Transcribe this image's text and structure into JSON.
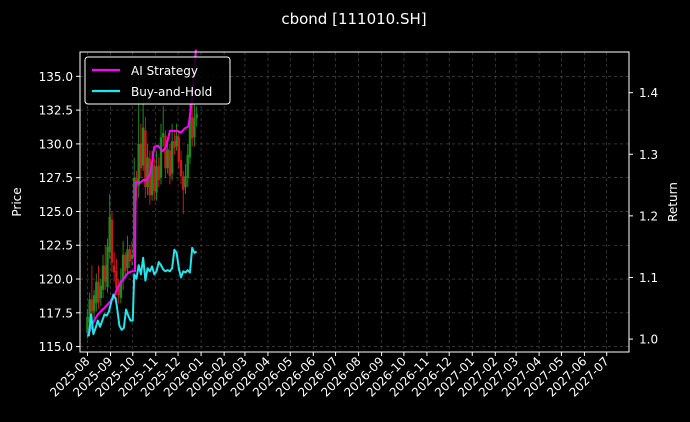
{
  "chart_data": {
    "type": "line",
    "title": "cbond [111010.SH]",
    "ylabel_left": "Price",
    "ylabel_right": "Return",
    "ylim_left": [
      114.6,
      136.8
    ],
    "ylim_right": [
      0.979,
      1.466
    ],
    "yticks_left": [
      "115.0",
      "117.5",
      "120.0",
      "122.5",
      "125.0",
      "127.5",
      "130.0",
      "132.5",
      "135.0"
    ],
    "yticks_right": [
      "1.0",
      "1.1",
      "1.2",
      "1.3",
      "1.4"
    ],
    "xticks": [
      "2025-08",
      "2025-09",
      "2025-10",
      "2025-11",
      "2025-12",
      "2026-01",
      "2026-02",
      "2026-03",
      "2026-04",
      "2026-05",
      "2026-06",
      "2026-07",
      "2026-08",
      "2026-09",
      "2026-10",
      "2026-11",
      "2026-12",
      "2027-01",
      "2027-02",
      "2027-03",
      "2027-04",
      "2027-05",
      "2027-06",
      "2027-07"
    ],
    "grid": true,
    "legend_position": "top-left",
    "colors": {
      "up": "#1f8a1f",
      "down": "#cc1a1a",
      "ai": "#ff00ff",
      "bh": "#22e5ee",
      "grid": "#555555"
    },
    "series": [
      {
        "name": "AI Strategy",
        "axis": "right",
        "color": "#ff00ff",
        "x": [
          "2025-08-01",
          "2025-08-05",
          "2025-08-10",
          "2025-08-15",
          "2025-08-20",
          "2025-08-25",
          "2025-08-31",
          "2025-09-05",
          "2025-09-10",
          "2025-09-15",
          "2025-09-20",
          "2025-09-25",
          "2025-09-30",
          "2025-10-04",
          "2025-10-05",
          "2025-10-10",
          "2025-10-15",
          "2025-10-20",
          "2025-10-25",
          "2025-10-30",
          "2025-11-04",
          "2025-11-10",
          "2025-11-15",
          "2025-11-20",
          "2025-11-25",
          "2025-11-30",
          "2025-12-05",
          "2025-12-10",
          "2025-12-15",
          "2025-12-20",
          "2025-12-25"
        ],
        "values": [
          1.006,
          1.015,
          1.03,
          1.04,
          1.046,
          1.052,
          1.06,
          1.066,
          1.082,
          1.092,
          1.1,
          1.108,
          1.11,
          1.11,
          1.255,
          1.253,
          1.258,
          1.258,
          1.27,
          1.312,
          1.314,
          1.305,
          1.312,
          1.338,
          1.338,
          1.338,
          1.335,
          1.342,
          1.345,
          1.39,
          1.47
        ]
      },
      {
        "name": "Buy-and-Hold",
        "axis": "right",
        "color": "#22e5ee",
        "x": [
          "2025-08-01",
          "2025-08-03",
          "2025-08-06",
          "2025-08-09",
          "2025-08-12",
          "2025-08-15",
          "2025-08-18",
          "2025-08-21",
          "2025-08-24",
          "2025-08-27",
          "2025-08-30",
          "2025-09-02",
          "2025-09-05",
          "2025-09-08",
          "2025-09-10",
          "2025-09-13",
          "2025-09-16",
          "2025-09-19",
          "2025-09-22",
          "2025-09-25",
          "2025-09-28",
          "2025-10-01",
          "2025-10-03",
          "2025-10-06",
          "2025-10-09",
          "2025-10-12",
          "2025-10-15",
          "2025-10-18",
          "2025-10-21",
          "2025-10-24",
          "2025-10-27",
          "2025-10-30",
          "2025-11-02",
          "2025-11-05",
          "2025-11-08",
          "2025-11-11",
          "2025-11-14",
          "2025-11-17",
          "2025-11-20",
          "2025-11-23",
          "2025-11-26",
          "2025-11-29",
          "2025-12-02",
          "2025-12-05",
          "2025-12-08",
          "2025-12-11",
          "2025-12-14",
          "2025-12-17",
          "2025-12-20",
          "2025-12-23",
          "2025-12-26"
        ],
        "values": [
          1.005,
          1.006,
          1.04,
          1.008,
          1.018,
          1.03,
          1.02,
          1.03,
          1.04,
          1.038,
          1.045,
          1.06,
          1.072,
          1.066,
          1.05,
          1.022,
          1.015,
          1.018,
          1.048,
          1.038,
          1.03,
          1.03,
          1.105,
          1.098,
          1.12,
          1.105,
          1.132,
          1.095,
          1.115,
          1.11,
          1.118,
          1.105,
          1.11,
          1.125,
          1.12,
          1.113,
          1.11,
          1.112,
          1.11,
          1.115,
          1.145,
          1.14,
          1.115,
          1.1,
          1.11,
          1.108,
          1.112,
          1.108,
          1.148,
          1.14,
          1.142
        ]
      }
    ],
    "candles": {
      "dates": [
        "2025-08-01",
        "2025-08-04",
        "2025-08-07",
        "2025-08-10",
        "2025-08-13",
        "2025-08-16",
        "2025-08-19",
        "2025-08-22",
        "2025-08-25",
        "2025-08-28",
        "2025-08-31",
        "2025-09-03",
        "2025-09-06",
        "2025-09-09",
        "2025-09-12",
        "2025-09-15",
        "2025-09-18",
        "2025-09-21",
        "2025-09-24",
        "2025-09-27",
        "2025-09-30",
        "2025-10-03",
        "2025-10-06",
        "2025-10-09",
        "2025-10-12",
        "2025-10-15",
        "2025-10-18",
        "2025-10-21",
        "2025-10-24",
        "2025-10-27",
        "2025-10-30",
        "2025-11-02",
        "2025-11-05",
        "2025-11-08",
        "2025-11-11",
        "2025-11-14",
        "2025-11-17",
        "2025-11-20",
        "2025-11-23",
        "2025-11-26",
        "2025-11-29",
        "2025-12-02",
        "2025-12-05",
        "2025-12-08",
        "2025-12-11",
        "2025-12-14",
        "2025-12-17",
        "2025-12-20",
        "2025-12-23",
        "2025-12-26"
      ],
      "open": [
        116.0,
        116.8,
        118.5,
        117.6,
        118.2,
        119.8,
        118.6,
        119.2,
        121.0,
        119.4,
        122.0,
        124.4,
        121.0,
        120.6,
        119.5,
        118.6,
        119.8,
        121.8,
        120.8,
        122.2,
        121.5,
        121.6,
        127.5,
        126.9,
        130.0,
        128.4,
        131.0,
        126.8,
        128.9,
        126.2,
        128.4,
        126.4,
        128.4,
        127.5,
        130.5,
        130.6,
        128.2,
        129.5,
        127.8,
        130.2,
        129.8,
        130.5,
        128.8,
        127.6,
        126.8,
        127.5,
        129.0,
        132.0,
        130.5,
        131.9
      ],
      "close": [
        117.2,
        118.5,
        117.6,
        118.8,
        119.8,
        118.3,
        119.5,
        121.0,
        119.8,
        122.4,
        124.6,
        121.2,
        120.5,
        119.3,
        118.8,
        119.9,
        121.8,
        120.6,
        122.2,
        121.3,
        121.8,
        127.5,
        126.7,
        130.0,
        128.2,
        131.2,
        126.8,
        129.0,
        126.2,
        128.5,
        126.5,
        128.3,
        127.3,
        130.5,
        130.8,
        128.2,
        129.6,
        127.6,
        130.2,
        129.7,
        130.6,
        128.7,
        127.6,
        126.6,
        127.6,
        129.2,
        132.0,
        130.4,
        131.9,
        132.2
      ],
      "high": [
        117.8,
        119.0,
        121.0,
        119.2,
        120.4,
        121.0,
        120.0,
        121.8,
        122.5,
        123.0,
        126.3,
        125.0,
        122.0,
        121.5,
        120.0,
        120.8,
        122.8,
        122.0,
        123.2,
        122.5,
        122.8,
        129.0,
        128.0,
        135.0,
        131.5,
        133.5,
        132.0,
        130.0,
        129.5,
        129.5,
        129.0,
        129.5,
        129.0,
        131.5,
        132.8,
        131.0,
        130.5,
        130.0,
        131.5,
        131.0,
        131.5,
        131.0,
        129.5,
        128.0,
        128.5,
        130.0,
        133.0,
        133.0,
        133.0,
        132.8
      ],
      "low": [
        115.6,
        116.3,
        116.8,
        117.0,
        117.6,
        117.8,
        118.0,
        118.6,
        119.2,
        119.0,
        121.5,
        120.5,
        119.8,
        118.8,
        118.2,
        118.2,
        119.2,
        120.0,
        120.3,
        120.8,
        121.0,
        121.0,
        125.8,
        126.0,
        127.5,
        128.0,
        126.0,
        126.2,
        125.5,
        125.8,
        125.8,
        125.8,
        126.8,
        127.0,
        129.8,
        127.5,
        127.8,
        127.0,
        127.3,
        129.2,
        129.5,
        128.2,
        127.0,
        124.8,
        126.3,
        126.8,
        128.5,
        129.8,
        129.8,
        131.3
      ]
    }
  }
}
